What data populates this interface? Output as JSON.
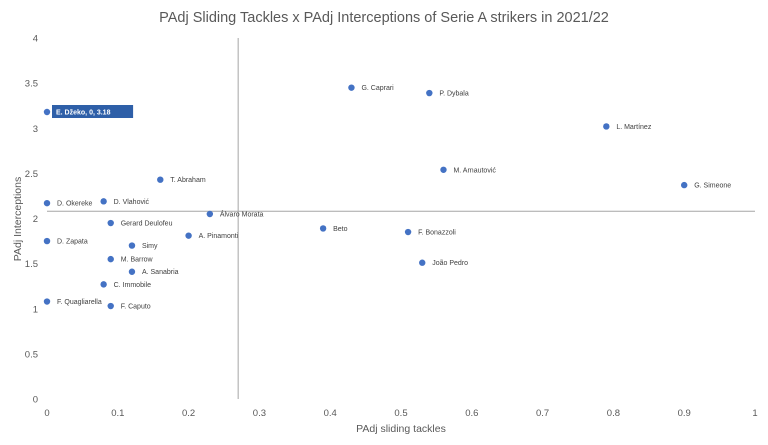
{
  "chart_data": {
    "type": "scatter",
    "title": "PAdj Sliding Tackles x PAdj Interceptions of Serie A strikers in 2021/22",
    "xlabel": "PAdj sliding tackles",
    "ylabel": "PAdj Interceptions",
    "xlim": [
      0,
      1
    ],
    "ylim": [
      0,
      4
    ],
    "xticks": [
      "0",
      "0.1",
      "0.2",
      "0.3",
      "0.4",
      "0.5",
      "0.6",
      "0.7",
      "0.8",
      "0.9",
      "1"
    ],
    "yticks": [
      "0",
      "0.5",
      "1",
      "1.5",
      "2",
      "2.5",
      "3",
      "3.5",
      "4"
    ],
    "grid": false,
    "reference_lines": {
      "x": 0.27,
      "y": 2.08
    },
    "marker_color": "#4472c4",
    "highlight_color": "#2e5fa8",
    "highlighted_label": "E. Džeko, 0, 3.18",
    "points": [
      {
        "label": "E. Džeko",
        "x": 0,
        "y": 3.18,
        "highlight": true
      },
      {
        "label": "G. Caprari",
        "x": 0.43,
        "y": 3.45
      },
      {
        "label": "P. Dybala",
        "x": 0.54,
        "y": 3.39
      },
      {
        "label": "L. Martínez",
        "x": 0.79,
        "y": 3.02
      },
      {
        "label": "M. Arnautović",
        "x": 0.56,
        "y": 2.54
      },
      {
        "label": "G. Simeone",
        "x": 0.9,
        "y": 2.37
      },
      {
        "label": "T. Abraham",
        "x": 0.16,
        "y": 2.43
      },
      {
        "label": "D. Okereke",
        "x": 0,
        "y": 2.17
      },
      {
        "label": "D. Vlahović",
        "x": 0.08,
        "y": 2.19
      },
      {
        "label": "Álvaro Morata",
        "x": 0.23,
        "y": 2.05
      },
      {
        "label": "Gerard Deulofeu",
        "x": 0.09,
        "y": 1.95
      },
      {
        "label": "A. Pinamonti",
        "x": 0.2,
        "y": 1.81
      },
      {
        "label": "Beto",
        "x": 0.39,
        "y": 1.89
      },
      {
        "label": "F. Bonazzoli",
        "x": 0.51,
        "y": 1.85
      },
      {
        "label": "D. Zapata",
        "x": 0,
        "y": 1.75
      },
      {
        "label": "Simy",
        "x": 0.12,
        "y": 1.7
      },
      {
        "label": "M. Barrow",
        "x": 0.09,
        "y": 1.55
      },
      {
        "label": "João Pedro",
        "x": 0.53,
        "y": 1.51
      },
      {
        "label": "A. Sanabria",
        "x": 0.12,
        "y": 1.41
      },
      {
        "label": "C. Immobile",
        "x": 0.08,
        "y": 1.27
      },
      {
        "label": "F. Quagliarella",
        "x": 0,
        "y": 1.08
      },
      {
        "label": "F. Caputo",
        "x": 0.09,
        "y": 1.03
      }
    ]
  }
}
